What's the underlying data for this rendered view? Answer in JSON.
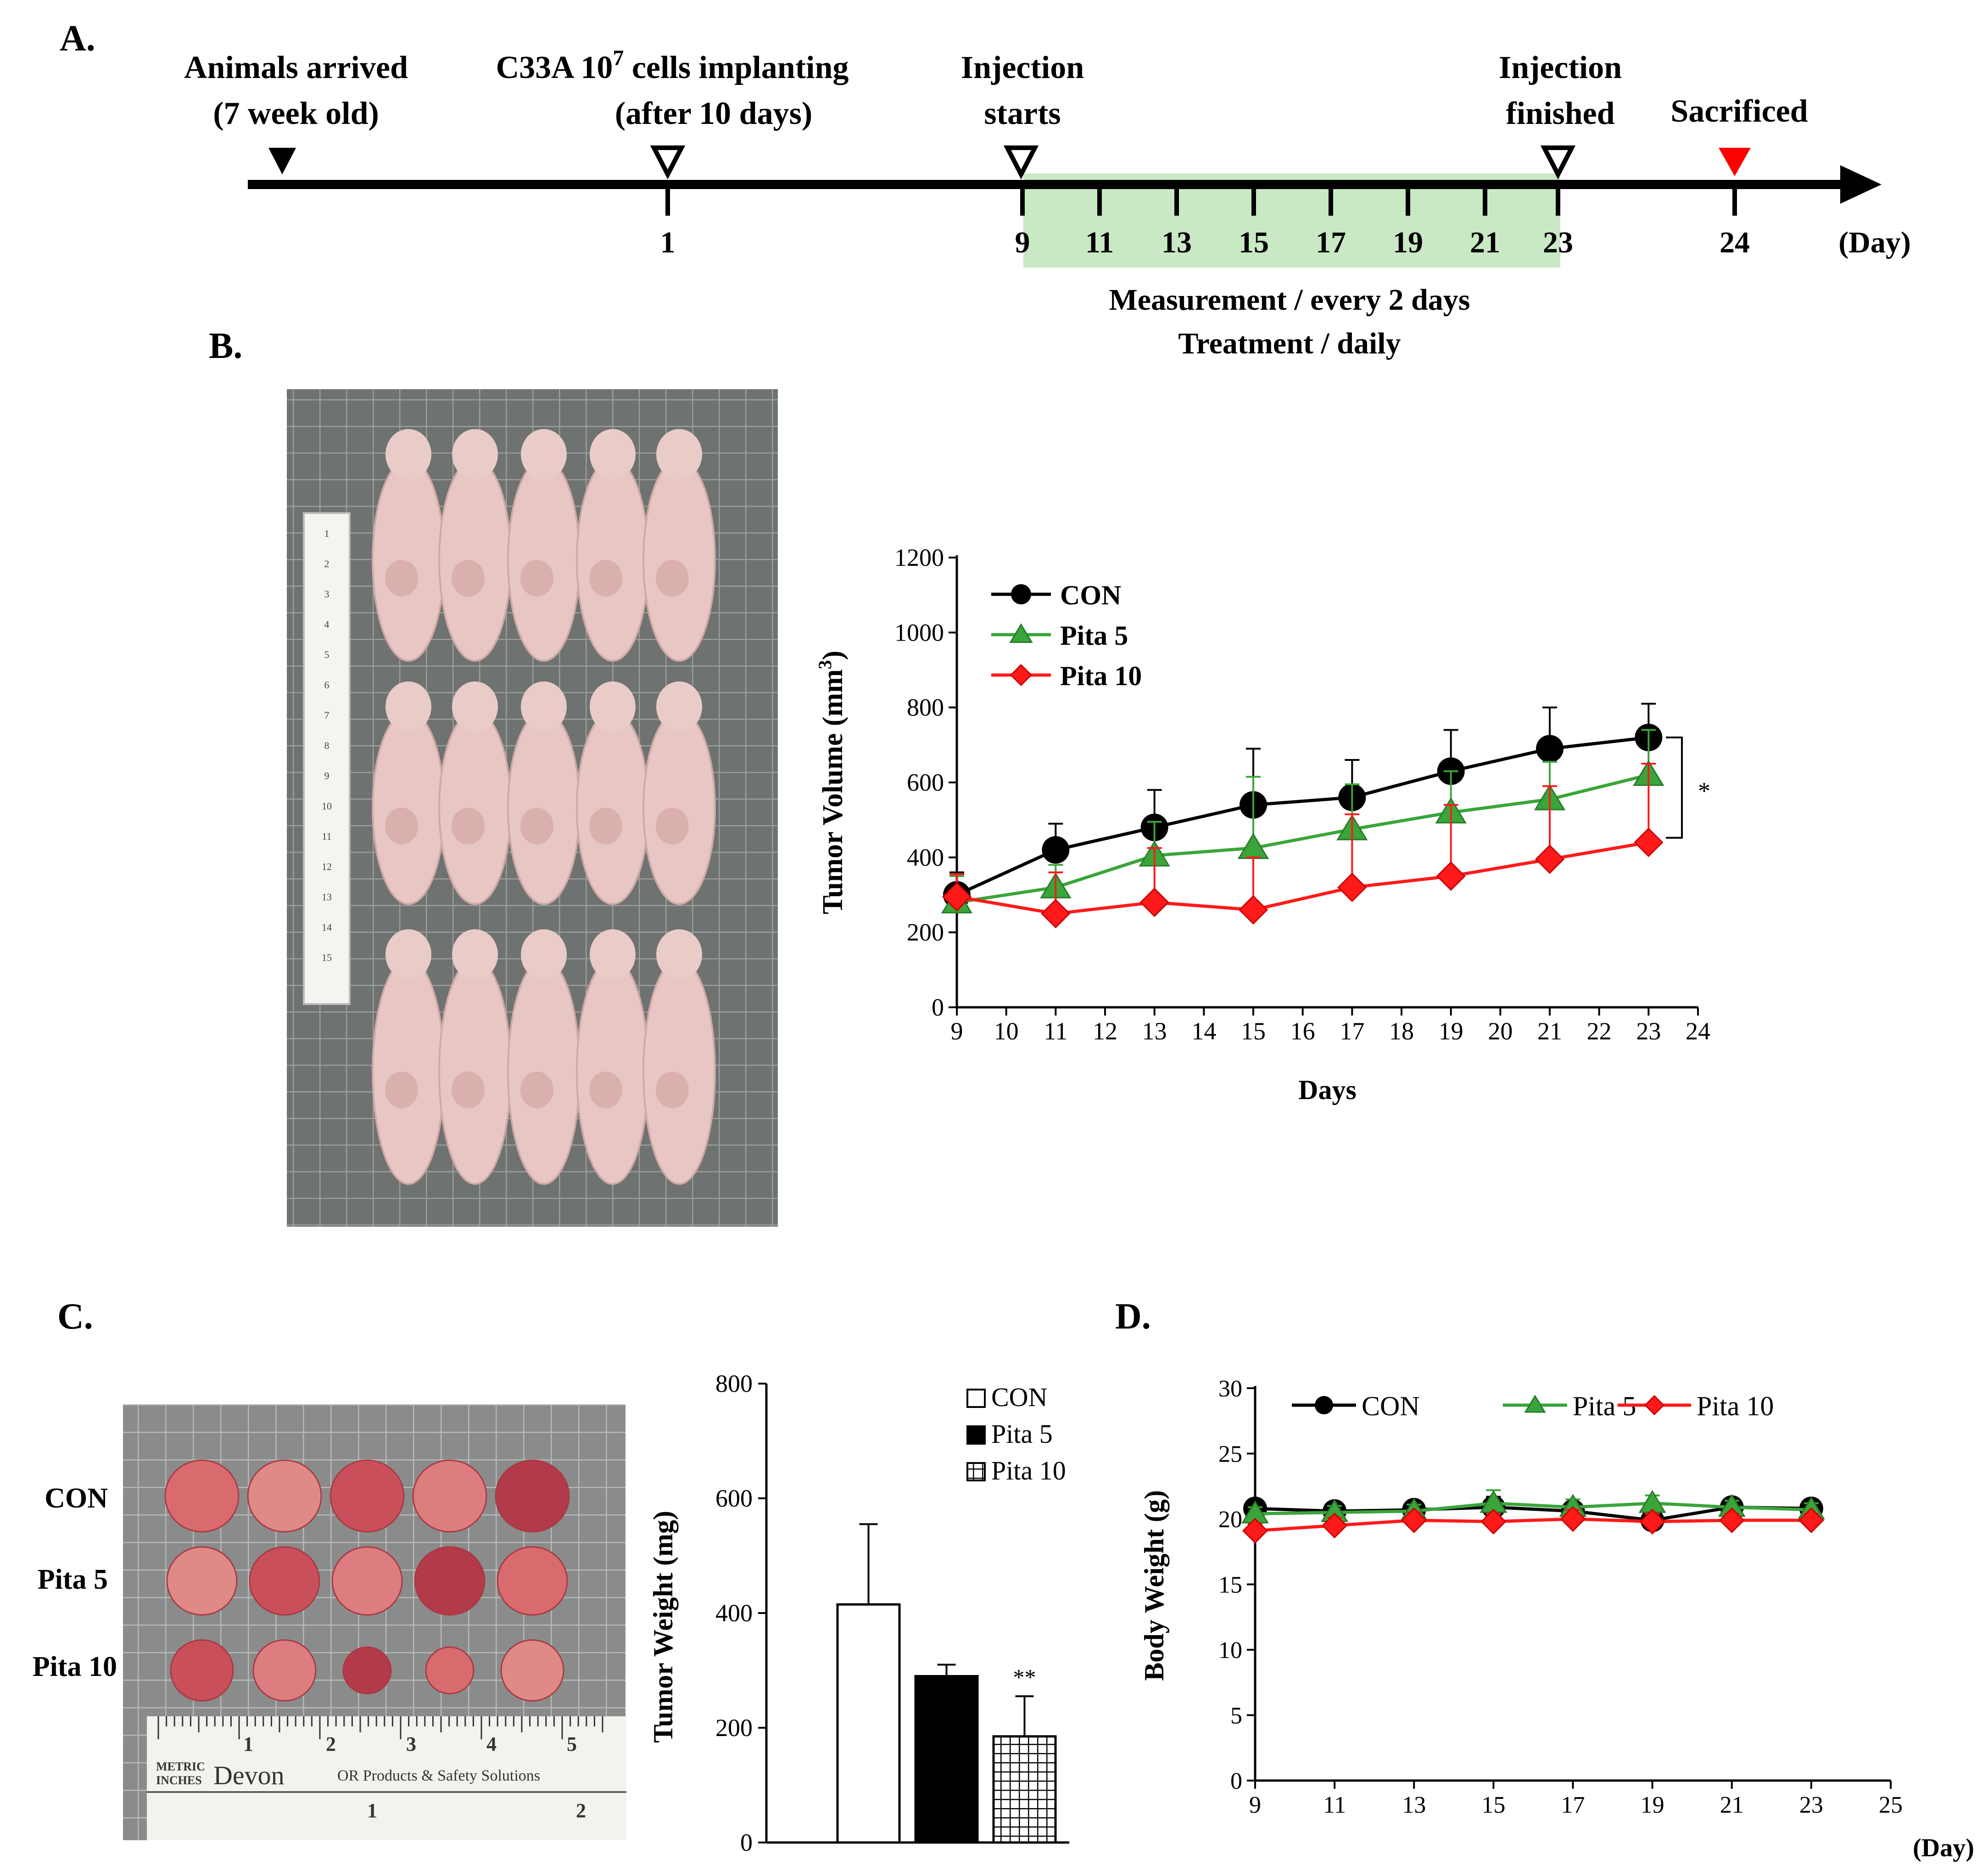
{
  "panels": {
    "A": {
      "letter": "A.",
      "events": [
        {
          "line1": "Animals arrived",
          "line2": "(7 week old)"
        },
        {
          "line1_pre": "C33A 10",
          "line1_sup": "7",
          "line1_post": " cells implanting",
          "line2": "(after 10 days)"
        },
        {
          "line1": "Injection",
          "line2": "starts"
        },
        {
          "line1": "Injection",
          "line2": "finished"
        },
        {
          "line1": "Sacrificed"
        }
      ],
      "ticks": [
        "1",
        "9",
        "11",
        "13",
        "15",
        "17",
        "19",
        "21",
        "23",
        "24"
      ],
      "unit": "(Day)",
      "note1": "Measurement / every 2 days",
      "note2": "Treatment / daily"
    },
    "B": {
      "letter": "B."
    },
    "C": {
      "letter": "C.",
      "row_labels": [
        "CON",
        "Pita 5",
        "Pita 10"
      ]
    },
    "D": {
      "letter": "D."
    }
  },
  "photos": {
    "mice_ruler_digits": [
      "1",
      "2",
      "3",
      "4",
      "5",
      "6",
      "7",
      "8",
      "9",
      "10",
      "11",
      "12",
      "13",
      "14",
      "15"
    ],
    "tumor_ruler_cm": [
      "1",
      "2",
      "3",
      "4",
      "5"
    ],
    "tumor_ruler_text1": "METRIC",
    "tumor_ruler_text2": "INCHES",
    "tumor_ruler_brand": "Devon",
    "tumor_ruler_tagline": "OR Products & Safety Solutions",
    "tumor_ruler_in": [
      "1",
      "2"
    ]
  },
  "colors": {
    "con": "#000000",
    "pita5": "#3aa53a",
    "pita10": "#ff1a1a",
    "shade": "#c9e8c4",
    "sacrificed": "#ff0000"
  },
  "chart_data": [
    {
      "id": "tumor-volume",
      "type": "line",
      "title": "",
      "xlabel": "Days",
      "ylabel": "Tumor  Volume  (mm",
      "ylabel_sup": "3",
      "ylabel_close": ")",
      "xlim": [
        9,
        24
      ],
      "ylim": [
        0,
        1200
      ],
      "xticks": [
        9,
        10,
        11,
        12,
        13,
        14,
        15,
        16,
        17,
        18,
        19,
        20,
        21,
        22,
        23,
        24
      ],
      "yticks": [
        0,
        200,
        400,
        600,
        800,
        1000,
        1200
      ],
      "x": [
        9,
        11,
        13,
        15,
        17,
        19,
        21,
        23
      ],
      "series": [
        {
          "name": "CON",
          "color": "#000000",
          "marker": "circle",
          "values": [
            300,
            420,
            480,
            540,
            560,
            630,
            690,
            720
          ],
          "errors": [
            60,
            70,
            100,
            150,
            100,
            110,
            110,
            90
          ]
        },
        {
          "name": "Pita 5",
          "color": "#3aa53a",
          "marker": "triangle",
          "values": [
            280,
            320,
            405,
            425,
            475,
            520,
            555,
            620
          ],
          "errors": [
            70,
            60,
            90,
            190,
            120,
            110,
            100,
            120
          ]
        },
        {
          "name": "Pita 10",
          "color": "#ff1a1a",
          "marker": "diamond",
          "values": [
            295,
            250,
            280,
            260,
            320,
            350,
            395,
            440
          ],
          "errors": [
            60,
            110,
            145,
            140,
            195,
            190,
            195,
            210
          ]
        }
      ],
      "annotation": "*"
    },
    {
      "id": "tumor-weight",
      "type": "bar",
      "categories": [
        "CON",
        "Pita 5",
        "Pita 10"
      ],
      "values": [
        415,
        290,
        185
      ],
      "errors": [
        140,
        20,
        70
      ],
      "fills": [
        "white",
        "black",
        "grid"
      ],
      "ylabel": "Tumor Weight (mg)",
      "ylim": [
        0,
        800
      ],
      "yticks": [
        0,
        200,
        400,
        600,
        800
      ],
      "annotation": "**"
    },
    {
      "id": "body-weight",
      "type": "line",
      "xlabel": "(Day)",
      "ylabel": "Body  Weight  (g)",
      "xlim": [
        9,
        25
      ],
      "ylim": [
        0,
        30
      ],
      "xticks": [
        9,
        11,
        13,
        15,
        17,
        19,
        21,
        23,
        25
      ],
      "yticks": [
        0,
        5,
        10,
        15,
        20,
        25,
        30
      ],
      "x": [
        9,
        11,
        13,
        15,
        17,
        19,
        21,
        23
      ],
      "series": [
        {
          "name": "CON",
          "color": "#000000",
          "marker": "circle",
          "values": [
            20.8,
            20.6,
            20.7,
            20.9,
            20.6,
            19.9,
            20.9,
            20.8
          ],
          "errors": [
            0.5,
            0.5,
            0.5,
            0.8,
            0.6,
            0.6,
            0.5,
            0.5
          ]
        },
        {
          "name": "Pita 5",
          "color": "#3aa53a",
          "marker": "triangle",
          "values": [
            20.4,
            20.5,
            20.6,
            21.2,
            20.9,
            21.2,
            20.9,
            20.7
          ],
          "errors": [
            0.5,
            0.5,
            0.5,
            1.0,
            0.6,
            0.6,
            0.5,
            0.5
          ]
        },
        {
          "name": "Pita 10",
          "color": "#ff1a1a",
          "marker": "diamond",
          "values": [
            19.1,
            19.5,
            19.9,
            19.8,
            20.0,
            19.8,
            19.9,
            19.9
          ],
          "errors": [
            0.5,
            0.6,
            0.6,
            0.6,
            0.7,
            0.6,
            0.5,
            0.5
          ]
        }
      ]
    }
  ]
}
